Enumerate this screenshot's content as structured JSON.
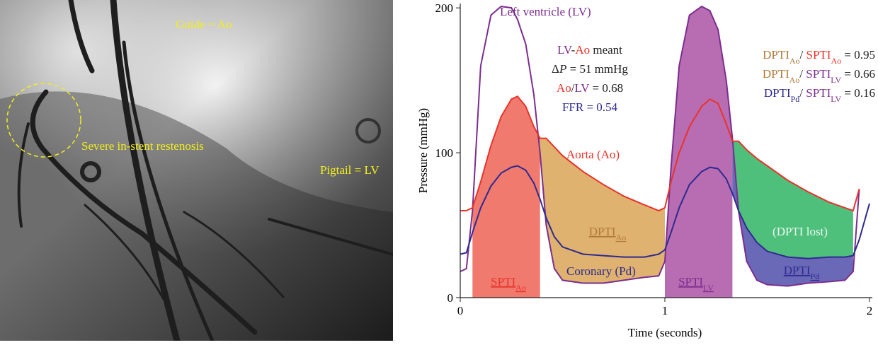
{
  "image_labels": {
    "guide": "Guide = Ao",
    "lesion": "Severe in-stent restenosis",
    "pigtail": "Pigtail = LV"
  },
  "chart_data": {
    "type": "line",
    "xlabel": "Time (seconds)",
    "ylabel": "Pressure (mmHg)",
    "xlim": [
      0,
      2
    ],
    "ylim": [
      0,
      203
    ],
    "xticks": [
      0,
      1,
      2
    ],
    "yticks": [
      0,
      100,
      200
    ],
    "x": [
      0,
      0.03,
      0.06,
      0.1,
      0.15,
      0.2,
      0.25,
      0.28,
      0.32,
      0.36,
      0.39,
      0.42,
      0.46,
      0.5,
      0.6,
      0.7,
      0.8,
      0.9,
      0.97,
      1.0,
      1.03,
      1.07,
      1.12,
      1.18,
      1.22,
      1.26,
      1.3,
      1.33,
      1.36,
      1.4,
      1.45,
      1.5,
      1.6,
      1.7,
      1.8,
      1.88,
      1.92,
      1.95,
      2.0
    ],
    "series": [
      {
        "name": "Left ventricle (LV)",
        "color": "#7b2d8e",
        "values": [
          18,
          20,
          60,
          160,
          195,
          201,
          200,
          192,
          175,
          140,
          100,
          50,
          20,
          12,
          10,
          10,
          12,
          14,
          15,
          25,
          90,
          160,
          195,
          201,
          198,
          185,
          150,
          110,
          60,
          25,
          12,
          9,
          8,
          10,
          11,
          12,
          18,
          75,
          null
        ]
      },
      {
        "name": "Aorta (Ao)",
        "color": "#e8332a",
        "values": [
          60,
          60,
          62,
          80,
          105,
          125,
          137,
          139,
          132,
          118,
          110,
          110,
          104,
          98,
          87,
          78,
          70,
          64,
          60,
          62,
          80,
          100,
          118,
          132,
          137,
          134,
          120,
          108,
          108,
          102,
          96,
          91,
          81,
          73,
          66,
          62,
          60,
          75,
          null
        ]
      },
      {
        "name": "Coronary (Pd)",
        "color": "#2e2a8f",
        "values": [
          30,
          31,
          45,
          62,
          77,
          86,
          90,
          91,
          88,
          79,
          68,
          55,
          42,
          35,
          30,
          29,
          28,
          28,
          30,
          33,
          45,
          62,
          78,
          87,
          90,
          89,
          82,
          72,
          60,
          48,
          38,
          32,
          28,
          27,
          28,
          28,
          29,
          40,
          65
        ]
      }
    ],
    "fills": [
      {
        "upper": "Aorta (Ao)",
        "xrange": [
          0.06,
          0.39
        ],
        "color": "#f07a6e",
        "label_color": "#e8332a",
        "label": [
          {
            "text": "SPTI"
          },
          {
            "text": "Ao",
            "sub": true
          }
        ]
      },
      {
        "upper": "Aorta (Ao)",
        "lower": "Left ventricle (LV)",
        "xrange": [
          0.39,
          1.0
        ],
        "color": "#dfb26f",
        "label_color": "#b07a3a",
        "label": [
          {
            "text": "DPTI"
          },
          {
            "text": "Ao",
            "sub": true
          }
        ]
      },
      {
        "upper": "Left ventricle (LV)",
        "xrange": [
          1.0,
          1.33
        ],
        "color": "#b86db2",
        "label_color": "#7b2d8e",
        "label": [
          {
            "text": "SPTI"
          },
          {
            "text": "LV",
            "sub": true
          }
        ]
      },
      {
        "upper": "Aorta (Ao)",
        "lower": "Coronary (Pd)",
        "xrange": [
          1.33,
          1.92
        ],
        "color": "#4fbf7c",
        "label_color": "#eafff0",
        "label": [
          {
            "text": "(DPTI lost)"
          }
        ]
      },
      {
        "upper": "Coronary (Pd)",
        "lower": "Left ventricle (LV)",
        "xrange": [
          1.33,
          1.92
        ],
        "color": "#6a69b8",
        "label_color": "#2e2a8f",
        "label": [
          {
            "text": "DPTI"
          },
          {
            "text": "Pd",
            "sub": true
          }
        ]
      }
    ],
    "annotations": [
      {
        "lines": [
          [
            {
              "text": "LV",
              "color": "#7b2d8e"
            },
            {
              "text": "-",
              "color": "#222"
            },
            {
              "text": "Ao",
              "color": "#e8332a"
            },
            {
              "text": " meant",
              "color": "#222"
            }
          ],
          [
            {
              "text": "Δ",
              "color": "#222"
            },
            {
              "text": "P",
              "italic": true,
              "color": "#222"
            },
            {
              "text": " = 51 mmHg",
              "color": "#222"
            }
          ],
          [
            {
              "text": "Ao",
              "color": "#e8332a"
            },
            {
              "text": "/",
              "color": "#222"
            },
            {
              "text": "LV",
              "color": "#7b2d8e"
            },
            {
              "text": " = 0.68",
              "color": "#222"
            }
          ],
          [
            {
              "text": "FFR = 0.54",
              "color": "#2e2a8f"
            }
          ]
        ]
      },
      {
        "lines": [
          [
            {
              "text": "DPTI",
              "color": "#b07a3a"
            },
            {
              "text": "Ao",
              "sub": true,
              "color": "#b07a3a"
            },
            {
              "text": "/ ",
              "color": "#222"
            },
            {
              "text": "SPTI",
              "color": "#e8332a"
            },
            {
              "text": "Ao",
              "sub": true,
              "color": "#e8332a"
            },
            {
              "text": " = 0.95",
              "color": "#222"
            }
          ],
          [
            {
              "text": "DPTI",
              "color": "#b07a3a"
            },
            {
              "text": "Ao",
              "sub": true,
              "color": "#b07a3a"
            },
            {
              "text": "/ ",
              "color": "#222"
            },
            {
              "text": "SPTI",
              "color": "#7b2d8e"
            },
            {
              "text": "LV",
              "sub": true,
              "color": "#7b2d8e"
            },
            {
              "text": " = 0.66",
              "color": "#222"
            }
          ],
          [
            {
              "text": "DPTI",
              "color": "#2e2a8f"
            },
            {
              "text": "Pd",
              "sub": true,
              "color": "#2e2a8f"
            },
            {
              "text": "/ ",
              "color": "#222"
            },
            {
              "text": "SPTI",
              "color": "#7b2d8e"
            },
            {
              "text": "LV",
              "sub": true,
              "color": "#7b2d8e"
            },
            {
              "text": " = 0.16",
              "color": "#222"
            }
          ]
        ]
      }
    ]
  }
}
